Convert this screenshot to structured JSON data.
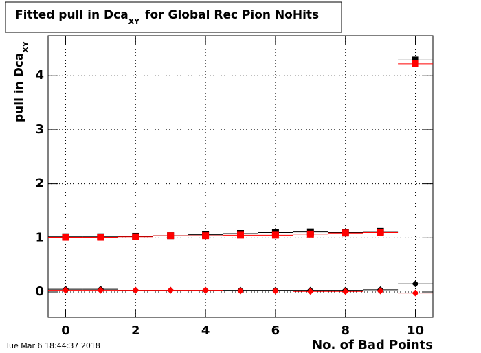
{
  "chart_data": {
    "type": "scatter",
    "title": {
      "text": "Fitted pull in Dca",
      "subscript": "XY",
      "rest": "for Global Rec Pion NoHits"
    },
    "y_label": {
      "text": "pull in Dca",
      "subscript": "XY"
    },
    "x_label": "No. of Bad Points",
    "timestamp": "Tue Mar  6 18:44:37 2018",
    "x": [
      0,
      1,
      2,
      3,
      4,
      5,
      6,
      7,
      8,
      9,
      10
    ],
    "xlim": [
      -0.5,
      10.5
    ],
    "xticks": [
      0,
      2,
      4,
      6,
      8,
      10
    ],
    "ylim": [
      -0.47,
      4.74
    ],
    "yticks": [
      0,
      1,
      2,
      3,
      4
    ],
    "grid": true,
    "series": [
      {
        "color": "#000000",
        "marker": "square",
        "values": [
          1.02,
          1.02,
          1.03,
          1.04,
          1.06,
          1.08,
          1.1,
          1.11,
          1.1,
          1.12,
          4.29
        ]
      },
      {
        "color": "#ff0000",
        "marker": "square",
        "values": [
          1.01,
          1.01,
          1.02,
          1.04,
          1.04,
          1.05,
          1.05,
          1.07,
          1.09,
          1.1,
          4.22
        ]
      },
      {
        "color": "#000000",
        "marker": "diamond",
        "values": [
          0.05,
          0.05,
          0.03,
          0.03,
          0.03,
          0.03,
          0.03,
          0.03,
          0.03,
          0.04,
          0.15
        ]
      },
      {
        "color": "#ff0000",
        "marker": "diamond",
        "values": [
          0.03,
          0.03,
          0.03,
          0.03,
          0.03,
          0.02,
          0.02,
          0.01,
          0.01,
          0.02,
          -0.02
        ]
      }
    ]
  }
}
